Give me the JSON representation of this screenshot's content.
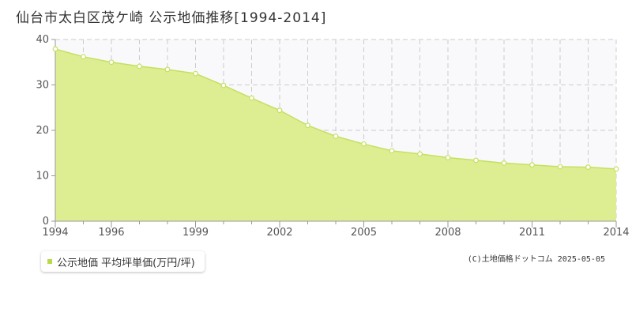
{
  "colors": {
    "fill": "#dcee91",
    "line": "#c5e060",
    "grid": "#cccccc",
    "axis": "#999999",
    "plot_bg_upper": "#f9f9fb",
    "marker_fill": "#ffffff",
    "legend_swatch": "#b8d94a"
  },
  "chart_data": {
    "type": "area",
    "title": "仙台市太白区茂ケ崎 公示地価推移[1994-2014]",
    "xlabel": "",
    "ylabel": "",
    "x": [
      1994,
      1995,
      1996,
      1997,
      1998,
      1999,
      2000,
      2001,
      2002,
      2003,
      2004,
      2005,
      2006,
      2007,
      2008,
      2009,
      2010,
      2011,
      2012,
      2013,
      2014
    ],
    "series": [
      {
        "name": "公示地価 平均坪単価(万円/坪)",
        "values": [
          37.9,
          36.2,
          35.0,
          34.1,
          33.4,
          32.5,
          29.9,
          27.1,
          24.4,
          21.1,
          18.7,
          17.0,
          15.5,
          14.8,
          14.0,
          13.4,
          12.8,
          12.4,
          12.0,
          11.9,
          11.5
        ]
      }
    ],
    "xlim": [
      1994,
      2014
    ],
    "ylim": [
      0,
      40
    ],
    "yticks": [
      "0",
      "10",
      "20",
      "30",
      "40"
    ],
    "xticks": [
      "1994",
      "1996",
      "1999",
      "2002",
      "2005",
      "2008",
      "2011",
      "2014"
    ],
    "grid": true,
    "legend": "bottom-left"
  },
  "legend": {
    "label": "公示地価 平均坪単価(万円/坪)"
  },
  "credit": "(C)土地価格ドットコム 2025-05-05"
}
